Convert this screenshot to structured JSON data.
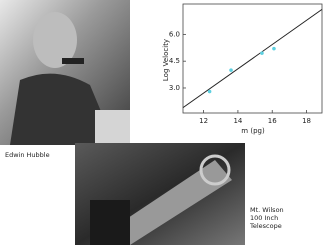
{
  "captions": {
    "hubble": "Edwin Hubble",
    "telescope": [
      "Mt. Wilson",
      "100 Inch",
      "Telescope"
    ]
  },
  "chart_data": {
    "type": "scatter",
    "xlabel": "m (pg)",
    "ylabel": "Log Velocity",
    "xlim": [
      10.8,
      18.9
    ],
    "ylim": [
      1.6,
      7.7
    ],
    "xticks": [
      12,
      14,
      16,
      18
    ],
    "yticks": [
      {
        "value": 3,
        "label": "3.0"
      },
      {
        "value": 4.5,
        "label": "4.5"
      },
      {
        "value": 6,
        "label": "6.0"
      }
    ],
    "series": [
      {
        "mode": "line",
        "color": "#222222",
        "x": [
          10.8,
          18.9
        ],
        "values": [
          1.9,
          7.4
        ]
      },
      {
        "mode": "markers",
        "color": "#5fd0e0",
        "x": [
          12.35,
          13.6,
          15.4,
          16.1
        ],
        "values": [
          2.8,
          4.0,
          4.95,
          5.2
        ]
      }
    ]
  }
}
